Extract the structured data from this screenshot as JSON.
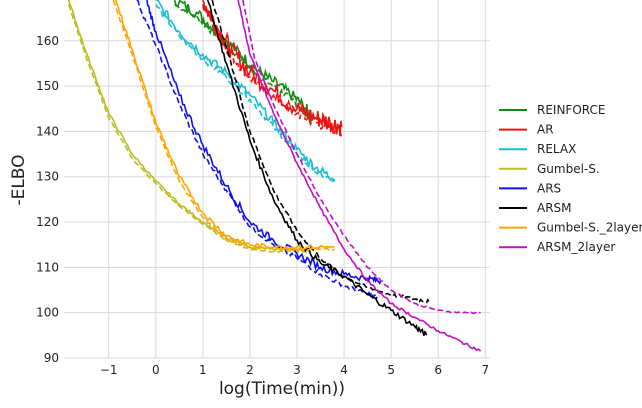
{
  "chart_data": {
    "type": "line",
    "xlabel": "log(Time(min))",
    "ylabel": "-ELBO",
    "xlim": [
      -1.95,
      7.1
    ],
    "ylim": [
      90,
      169
    ],
    "xticks": [
      -1,
      0,
      1,
      2,
      3,
      4,
      5,
      6,
      7
    ],
    "xtick_labels": [
      "−1",
      "0",
      "1",
      "2",
      "3",
      "4",
      "5",
      "6",
      "7"
    ],
    "yticks": [
      90,
      100,
      110,
      120,
      130,
      140,
      150,
      160
    ],
    "grid": true,
    "legend_position": "right",
    "series": [
      {
        "name": "REINFORCE",
        "color": "#138a13",
        "noise": 1.2,
        "solid": [
          [
            0.4,
            169
          ],
          [
            0.9,
            166
          ],
          [
            1.3,
            162
          ],
          [
            1.7,
            158
          ],
          [
            2.1,
            154
          ],
          [
            2.5,
            151
          ],
          [
            2.9,
            148
          ],
          [
            3.2,
            145
          ],
          [
            3.3,
            143
          ]
        ],
        "dashed": [
          [
            0.4,
            168
          ],
          [
            0.9,
            165
          ],
          [
            1.3,
            161
          ],
          [
            1.7,
            157
          ],
          [
            2.1,
            153
          ],
          [
            2.5,
            150
          ],
          [
            2.9,
            147
          ],
          [
            3.2,
            144
          ],
          [
            3.3,
            142
          ]
        ]
      },
      {
        "name": "AR",
        "color": "#ee1111",
        "noise": 2.2,
        "solid": [
          [
            1.0,
            169
          ],
          [
            1.3,
            163
          ],
          [
            1.6,
            158
          ],
          [
            2.0,
            153
          ],
          [
            2.5,
            149
          ],
          [
            3.0,
            145
          ],
          [
            3.4,
            143
          ],
          [
            3.7,
            142
          ],
          [
            3.95,
            141
          ]
        ],
        "dashed": [
          [
            1.0,
            168
          ],
          [
            1.3,
            162
          ],
          [
            1.6,
            157
          ],
          [
            2.0,
            152
          ],
          [
            2.5,
            148
          ],
          [
            3.0,
            144
          ],
          [
            3.4,
            142
          ],
          [
            3.7,
            141
          ],
          [
            3.95,
            140
          ]
        ]
      },
      {
        "name": "RELAX",
        "color": "#17becf",
        "noise": 1.0,
        "solid": [
          [
            0.0,
            169
          ],
          [
            0.5,
            162
          ],
          [
            1.0,
            157
          ],
          [
            1.5,
            153
          ],
          [
            2.0,
            148
          ],
          [
            2.5,
            142
          ],
          [
            3.0,
            136
          ],
          [
            3.4,
            132
          ],
          [
            3.8,
            129.5
          ]
        ],
        "dashed": [
          [
            0.0,
            168
          ],
          [
            0.5,
            161
          ],
          [
            1.0,
            156
          ],
          [
            1.5,
            152
          ],
          [
            2.0,
            147
          ],
          [
            2.5,
            141
          ],
          [
            3.0,
            135
          ],
          [
            3.4,
            131
          ],
          [
            3.8,
            129
          ]
        ]
      },
      {
        "name": "Gumbel-S.",
        "color": "#bcbd22",
        "noise": 0.3,
        "solid": [
          [
            -1.85,
            169
          ],
          [
            -1.5,
            158
          ],
          [
            -1.0,
            144
          ],
          [
            -0.5,
            135
          ],
          [
            0.0,
            129
          ],
          [
            0.5,
            124
          ],
          [
            1.0,
            120
          ],
          [
            1.5,
            116.5
          ],
          [
            2.0,
            114.5
          ],
          [
            2.5,
            114
          ],
          [
            3.0,
            114
          ],
          [
            3.3,
            114
          ]
        ],
        "dashed": [
          [
            -1.85,
            168
          ],
          [
            -1.5,
            157
          ],
          [
            -1.0,
            143
          ],
          [
            -0.5,
            134
          ],
          [
            0.0,
            128.5
          ],
          [
            0.5,
            123.5
          ],
          [
            1.0,
            119.5
          ],
          [
            1.5,
            116
          ],
          [
            2.0,
            114
          ],
          [
            2.5,
            113.5
          ],
          [
            3.0,
            113.5
          ],
          [
            3.3,
            113.5
          ]
        ]
      },
      {
        "name": "ARS",
        "color": "#1010ee",
        "noise": 0.8,
        "solid": [
          [
            -0.2,
            169
          ],
          [
            0.0,
            162
          ],
          [
            0.5,
            148
          ],
          [
            1.0,
            137
          ],
          [
            1.5,
            128
          ],
          [
            2.0,
            120
          ],
          [
            2.5,
            116
          ],
          [
            3.0,
            113
          ],
          [
            3.5,
            110
          ],
          [
            4.0,
            108.5
          ],
          [
            4.5,
            107.5
          ],
          [
            4.8,
            107
          ]
        ],
        "dashed": [
          [
            -0.4,
            169
          ],
          [
            0.0,
            159
          ],
          [
            0.5,
            146
          ],
          [
            1.0,
            135
          ],
          [
            1.5,
            127
          ],
          [
            2.0,
            119
          ],
          [
            2.5,
            115
          ],
          [
            3.0,
            112
          ],
          [
            3.5,
            108.5
          ],
          [
            4.0,
            106
          ],
          [
            4.5,
            104
          ],
          [
            4.7,
            103.5
          ]
        ]
      },
      {
        "name": "ARSM",
        "color": "#000000",
        "noise": 0.6,
        "solid": [
          [
            1.1,
            169
          ],
          [
            1.5,
            155
          ],
          [
            2.0,
            138
          ],
          [
            2.5,
            125
          ],
          [
            3.0,
            116
          ],
          [
            3.5,
            111
          ],
          [
            4.0,
            108
          ],
          [
            4.5,
            104
          ],
          [
            5.0,
            100.5
          ],
          [
            5.5,
            97
          ],
          [
            5.75,
            95
          ]
        ],
        "dashed": [
          [
            1.2,
            169
          ],
          [
            1.6,
            155
          ],
          [
            2.0,
            140
          ],
          [
            2.5,
            127
          ],
          [
            3.0,
            118
          ],
          [
            3.5,
            112
          ],
          [
            4.0,
            108
          ],
          [
            4.5,
            105.5
          ],
          [
            5.0,
            104
          ],
          [
            5.5,
            103
          ],
          [
            5.8,
            102.5
          ]
        ]
      },
      {
        "name": "Gumbel-S._2layer",
        "color": "#ffa500",
        "noise": 0.5,
        "solid": [
          [
            -0.85,
            169
          ],
          [
            -0.5,
            158
          ],
          [
            0.0,
            142
          ],
          [
            0.5,
            130
          ],
          [
            1.0,
            122
          ],
          [
            1.5,
            117
          ],
          [
            2.0,
            115
          ],
          [
            2.5,
            114.5
          ],
          [
            3.0,
            114.5
          ],
          [
            3.8,
            114.5
          ]
        ],
        "dashed": [
          [
            -0.9,
            169
          ],
          [
            -0.5,
            157
          ],
          [
            0.0,
            141
          ],
          [
            0.5,
            129
          ],
          [
            1.0,
            121
          ],
          [
            1.5,
            116
          ],
          [
            2.0,
            114.5
          ],
          [
            2.5,
            114
          ],
          [
            3.0,
            114
          ],
          [
            3.8,
            114
          ]
        ]
      },
      {
        "name": "ARSM_2layer",
        "color": "#c011c0",
        "noise": 0.3,
        "solid": [
          [
            1.75,
            169
          ],
          [
            2.0,
            157
          ],
          [
            2.5,
            144
          ],
          [
            3.0,
            133
          ],
          [
            3.5,
            123
          ],
          [
            4.0,
            114
          ],
          [
            4.5,
            107
          ],
          [
            5.0,
            102
          ],
          [
            5.5,
            99
          ],
          [
            6.0,
            96
          ],
          [
            6.5,
            93.5
          ],
          [
            6.9,
            91.5
          ]
        ],
        "dashed": [
          [
            1.85,
            169
          ],
          [
            2.1,
            156
          ],
          [
            2.5,
            146
          ],
          [
            3.0,
            135
          ],
          [
            3.5,
            125
          ],
          [
            4.0,
            117
          ],
          [
            4.5,
            110
          ],
          [
            5.0,
            105
          ],
          [
            5.5,
            102
          ],
          [
            6.0,
            100.5
          ],
          [
            6.5,
            100
          ],
          [
            6.9,
            100
          ]
        ]
      }
    ]
  }
}
